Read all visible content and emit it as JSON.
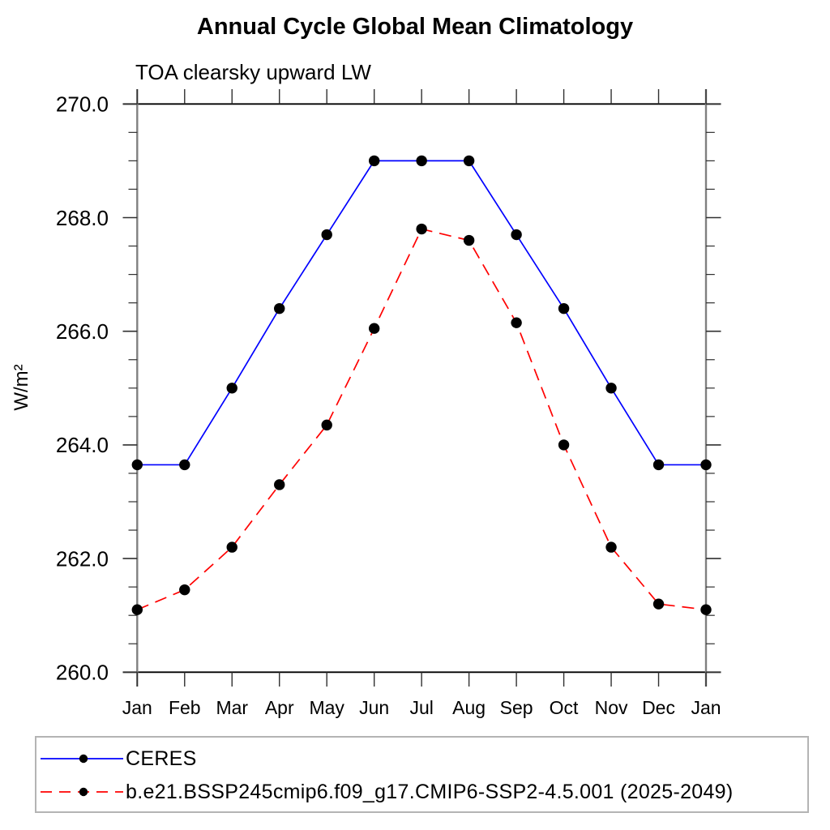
{
  "title": "Annual Cycle Global Mean Climatology",
  "subtitle": "TOA clearsky upward LW",
  "chart_data": {
    "type": "line",
    "title": "Annual Cycle Global Mean Climatology",
    "subtitle": "TOA clearsky upward LW",
    "xlabel": "",
    "ylabel": "W/m²",
    "x_categories": [
      "Jan",
      "Feb",
      "Mar",
      "Apr",
      "May",
      "Jun",
      "Jul",
      "Aug",
      "Sep",
      "Oct",
      "Nov",
      "Dec",
      "Jan"
    ],
    "ylim": [
      260.0,
      270.0
    ],
    "ytick_values": [
      260.0,
      262.0,
      264.0,
      266.0,
      268.0,
      270.0
    ],
    "ytick_labels": [
      "260.0",
      "262.0",
      "264.0",
      "266.0",
      "268.0",
      "270.0"
    ],
    "ytick_minor_step": 0.5,
    "grid": false,
    "legend_position": "bottom-left",
    "series": [
      {
        "name": "CERES",
        "line_color": "#0000ff",
        "line_style": "solid",
        "marker": "filled-circle",
        "marker_color": "#000000",
        "values": [
          263.65,
          263.65,
          265.0,
          266.4,
          267.7,
          269.0,
          269.0,
          269.0,
          267.7,
          266.4,
          265.0,
          263.65,
          263.65
        ]
      },
      {
        "name": "b.e21.BSSP245cmip6.f09_g17.CMIP6-SSP2-4.5.001 (2025-2049)",
        "line_color": "#ff0000",
        "line_style": "dashed",
        "marker": "filled-circle",
        "marker_color": "#000000",
        "values": [
          261.1,
          261.45,
          262.2,
          263.3,
          264.35,
          266.05,
          267.8,
          267.6,
          266.15,
          264.0,
          262.2,
          261.2,
          261.1
        ]
      }
    ]
  },
  "colors": {
    "ceres_blue": "#0000ff",
    "model_red": "#ff0000",
    "marker_black": "#000000",
    "axis_horizontal": "#000000",
    "axis_vertical": "#808080",
    "tick": "#303030",
    "legend_border": "#b4b4b4",
    "background": "#ffffff"
  }
}
